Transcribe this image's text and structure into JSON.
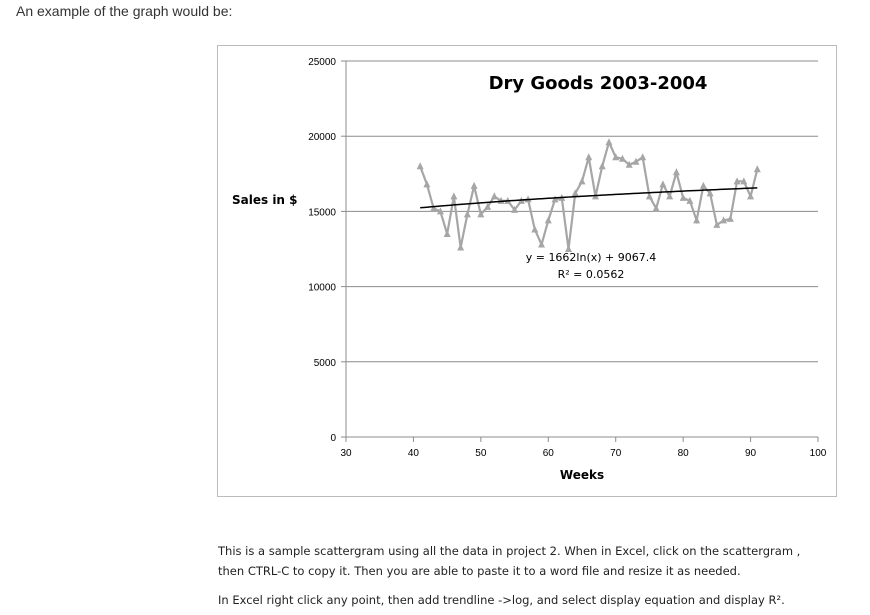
{
  "intro": "An example of the graph would be:",
  "notes": [
    "This is a sample scattergram using all the data in project 2.  When in Excel, click on the scattergram ,",
    "then CTRL-C to copy it.  Then you are able to paste it to a word file and resize it as needed.",
    "In Excel right click any point, then add trendline ->log, and select display equation and display R²."
  ],
  "chart_data": {
    "type": "line",
    "title": "Dry Goods 2003-2004",
    "xlabel": "Weeks",
    "ylabel": "Sales in $",
    "xlim": [
      30,
      100
    ],
    "ylim": [
      0,
      25000
    ],
    "xticks": [
      30,
      40,
      50,
      60,
      70,
      80,
      90,
      100
    ],
    "yticks": [
      0,
      5000,
      10000,
      15000,
      20000,
      25000
    ],
    "grid": "horizontal",
    "series_color": "#a6a6a6",
    "marker": "triangle",
    "x": [
      41,
      42,
      43,
      44,
      45,
      46,
      47,
      48,
      49,
      50,
      51,
      52,
      53,
      54,
      55,
      56,
      57,
      58,
      59,
      60,
      61,
      62,
      63,
      64,
      65,
      66,
      67,
      68,
      69,
      70,
      71,
      72,
      73,
      74,
      75,
      76,
      77,
      78,
      79,
      80,
      81,
      82,
      83,
      84,
      85,
      86,
      87,
      88,
      89,
      90,
      91
    ],
    "y": [
      18000,
      16800,
      15200,
      15000,
      13500,
      16000,
      12600,
      14800,
      16700,
      14800,
      15300,
      16000,
      15700,
      15700,
      15100,
      15700,
      15800,
      13800,
      12800,
      14400,
      15800,
      15900,
      12500,
      16200,
      17000,
      18600,
      16000,
      18000,
      19600,
      18600,
      18500,
      18100,
      18300,
      18600,
      16000,
      15200,
      16800,
      16000,
      17600,
      15900,
      15700,
      14400,
      16700,
      16200,
      14100,
      14400,
      14500,
      17000,
      17000,
      16000,
      17800
    ],
    "trendline": {
      "type": "log",
      "a": 1662,
      "b": 9067.4,
      "color": "#000000",
      "equation": "y = 1662ln(x) + 9067.4",
      "r2": "R² = 0.0562"
    }
  }
}
